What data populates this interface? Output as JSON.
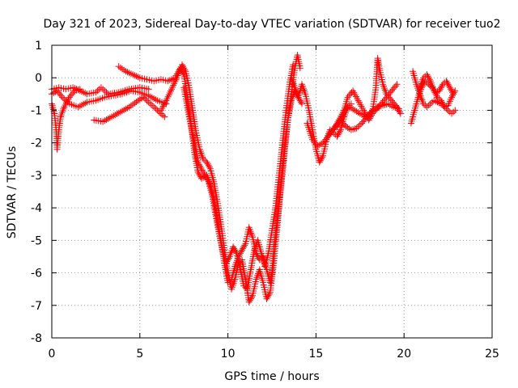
{
  "chart_data": {
    "type": "scatter",
    "title": "Day 321 of 2023, Sidereal Day-to-day VTEC variation (SDTVAR) for receiver tuo2",
    "xlabel": "GPS time / hours",
    "ylabel": "SDTVAR / TECUs",
    "xlim": [
      0,
      25
    ],
    "ylim": [
      -8,
      1
    ],
    "xticks": [
      0,
      5,
      10,
      15,
      20,
      25
    ],
    "yticks": [
      1,
      0,
      -1,
      -2,
      -3,
      -4,
      -5,
      -6,
      -7,
      -8
    ],
    "grid": true,
    "marker": "plus",
    "series": [
      {
        "name": "tuo2",
        "color": "#ff0000",
        "tracks": [
          [
            [
              0.0,
              -0.8
            ],
            [
              0.15,
              -1.1
            ],
            [
              0.25,
              -1.6
            ],
            [
              0.3,
              -2.2
            ],
            [
              0.4,
              -1.6
            ],
            [
              0.5,
              -1.2
            ],
            [
              0.7,
              -0.9
            ],
            [
              1.0,
              -0.6
            ],
            [
              1.3,
              -0.4
            ],
            [
              1.6,
              -0.35
            ]
          ],
          [
            [
              0.0,
              -0.5
            ],
            [
              0.3,
              -0.4
            ],
            [
              0.6,
              -0.6
            ],
            [
              1.0,
              -0.8
            ],
            [
              1.5,
              -0.9
            ],
            [
              2.0,
              -0.75
            ],
            [
              2.5,
              -0.7
            ],
            [
              3.0,
              -0.6
            ],
            [
              3.5,
              -0.55
            ],
            [
              4.0,
              -0.5
            ],
            [
              4.5,
              -0.4
            ],
            [
              5.0,
              -0.45
            ],
            [
              5.5,
              -0.55
            ],
            [
              6.0,
              -0.7
            ],
            [
              6.5,
              -0.8
            ]
          ],
          [
            [
              0.0,
              -0.35
            ],
            [
              0.4,
              -0.3
            ],
            [
              0.8,
              -0.35
            ],
            [
              1.2,
              -0.3
            ],
            [
              1.6,
              -0.4
            ],
            [
              2.0,
              -0.5
            ],
            [
              2.5,
              -0.45
            ],
            [
              2.8,
              -0.3
            ],
            [
              3.2,
              -0.5
            ],
            [
              3.8,
              -0.45
            ],
            [
              4.4,
              -0.35
            ],
            [
              5.0,
              -0.3
            ],
            [
              5.5,
              -0.35
            ]
          ],
          [
            [
              2.4,
              -1.3
            ],
            [
              2.9,
              -1.35
            ],
            [
              3.4,
              -1.2
            ],
            [
              3.9,
              -1.05
            ],
            [
              4.4,
              -0.9
            ],
            [
              4.9,
              -0.7
            ],
            [
              5.2,
              -0.6
            ],
            [
              5.6,
              -0.8
            ],
            [
              6.0,
              -1.0
            ],
            [
              6.4,
              -1.2
            ]
          ],
          [
            [
              3.8,
              0.35
            ],
            [
              4.2,
              0.2
            ],
            [
              4.6,
              0.1
            ],
            [
              5.0,
              0.0
            ],
            [
              5.4,
              -0.05
            ],
            [
              5.8,
              -0.1
            ],
            [
              6.2,
              -0.05
            ],
            [
              6.6,
              -0.1
            ],
            [
              7.0,
              0.0
            ],
            [
              7.3,
              0.3
            ],
            [
              7.5,
              0.1
            ],
            [
              7.7,
              -0.6
            ],
            [
              7.9,
              -1.4
            ],
            [
              8.1,
              -2.3
            ],
            [
              8.3,
              -2.9
            ],
            [
              8.5,
              -3.1
            ],
            [
              8.8,
              -3.0
            ],
            [
              9.0,
              -3.3
            ],
            [
              9.2,
              -3.7
            ],
            [
              9.4,
              -4.3
            ],
            [
              9.6,
              -5.0
            ],
            [
              9.8,
              -5.7
            ],
            [
              10.0,
              -6.3
            ],
            [
              10.2,
              -6.2
            ],
            [
              10.4,
              -5.8
            ],
            [
              10.6,
              -5.5
            ],
            [
              10.8,
              -5.3
            ],
            [
              11.0,
              -5.1
            ],
            [
              11.2,
              -4.6
            ],
            [
              11.4,
              -4.9
            ],
            [
              11.6,
              -5.4
            ],
            [
              11.8,
              -5.6
            ],
            [
              12.0,
              -5.5
            ],
            [
              12.2,
              -5.9
            ],
            [
              12.4,
              -6.3
            ],
            [
              12.5,
              -6.0
            ],
            [
              12.6,
              -5.2
            ],
            [
              12.8,
              -4.4
            ],
            [
              13.0,
              -3.4
            ],
            [
              13.2,
              -2.4
            ],
            [
              13.4,
              -1.3
            ],
            [
              13.6,
              -0.5
            ],
            [
              13.8,
              0.3
            ],
            [
              13.95,
              0.7
            ],
            [
              14.1,
              0.3
            ]
          ],
          [
            [
              6.2,
              -1.0
            ],
            [
              6.5,
              -0.7
            ],
            [
              6.8,
              -0.35
            ],
            [
              7.1,
              0.0
            ],
            [
              7.4,
              0.4
            ],
            [
              7.6,
              0.2
            ],
            [
              7.8,
              -0.3
            ],
            [
              8.0,
              -1.0
            ],
            [
              8.2,
              -1.7
            ],
            [
              8.4,
              -2.2
            ],
            [
              8.6,
              -2.5
            ],
            [
              8.8,
              -2.6
            ],
            [
              9.0,
              -2.8
            ],
            [
              9.2,
              -3.2
            ],
            [
              9.4,
              -3.8
            ],
            [
              9.6,
              -4.5
            ],
            [
              9.8,
              -5.3
            ],
            [
              10.0,
              -6.0
            ],
            [
              10.2,
              -6.5
            ],
            [
              10.4,
              -6.2
            ],
            [
              10.6,
              -5.7
            ],
            [
              10.8,
              -5.6
            ],
            [
              11.0,
              -6.2
            ],
            [
              11.2,
              -6.9
            ],
            [
              11.4,
              -6.7
            ],
            [
              11.6,
              -6.2
            ],
            [
              11.8,
              -5.9
            ],
            [
              12.0,
              -6.3
            ],
            [
              12.2,
              -6.8
            ],
            [
              12.4,
              -6.6
            ],
            [
              12.6,
              -5.7
            ],
            [
              12.8,
              -4.6
            ],
            [
              13.0,
              -3.3
            ],
            [
              13.2,
              -2.2
            ],
            [
              13.4,
              -1.3
            ],
            [
              13.6,
              -0.7
            ],
            [
              13.8,
              -0.4
            ],
            [
              14.0,
              -0.6
            ],
            [
              14.2,
              -0.8
            ]
          ],
          [
            [
              7.5,
              -0.3
            ],
            [
              7.8,
              -1.2
            ],
            [
              8.1,
              -2.0
            ],
            [
              8.3,
              -2.6
            ],
            [
              8.6,
              -2.9
            ],
            [
              8.9,
              -3.2
            ],
            [
              9.1,
              -3.6
            ],
            [
              9.3,
              -4.2
            ],
            [
              9.5,
              -4.8
            ],
            [
              9.7,
              -5.3
            ],
            [
              9.9,
              -5.7
            ],
            [
              10.1,
              -5.5
            ],
            [
              10.3,
              -5.2
            ],
            [
              10.5,
              -5.4
            ],
            [
              10.7,
              -5.9
            ],
            [
              10.9,
              -6.4
            ],
            [
              11.1,
              -6.5
            ],
            [
              11.3,
              -5.9
            ],
            [
              11.5,
              -5.3
            ],
            [
              11.7,
              -5.0
            ],
            [
              11.9,
              -5.4
            ],
            [
              12.1,
              -5.8
            ],
            [
              12.3,
              -5.4
            ],
            [
              12.5,
              -4.7
            ],
            [
              12.7,
              -4.0
            ],
            [
              12.9,
              -3.0
            ],
            [
              13.1,
              -2.0
            ],
            [
              13.3,
              -1.0
            ],
            [
              13.5,
              -0.2
            ],
            [
              13.7,
              0.4
            ]
          ],
          [
            [
              13.6,
              0.0
            ],
            [
              13.8,
              -0.3
            ],
            [
              14.0,
              -0.6
            ],
            [
              14.2,
              -0.2
            ],
            [
              14.4,
              -0.5
            ],
            [
              14.6,
              -1.0
            ],
            [
              14.8,
              -1.6
            ],
            [
              15.0,
              -2.2
            ],
            [
              15.2,
              -2.6
            ],
            [
              15.4,
              -2.4
            ],
            [
              15.6,
              -1.9
            ],
            [
              15.8,
              -1.6
            ],
            [
              16.0,
              -1.7
            ],
            [
              16.2,
              -1.8
            ],
            [
              16.4,
              -1.6
            ],
            [
              16.6,
              -1.2
            ],
            [
              16.8,
              -0.9
            ],
            [
              17.0,
              -0.8
            ]
          ],
          [
            [
              14.5,
              -1.4
            ],
            [
              14.8,
              -1.9
            ],
            [
              15.1,
              -2.1
            ],
            [
              15.4,
              -2.0
            ],
            [
              15.7,
              -1.8
            ],
            [
              16.0,
              -1.6
            ],
            [
              16.3,
              -1.3
            ],
            [
              16.6,
              -1.0
            ],
            [
              16.9,
              -0.9
            ],
            [
              17.2,
              -1.0
            ],
            [
              17.5,
              -1.1
            ],
            [
              17.8,
              -1.2
            ],
            [
              18.1,
              -1.1
            ],
            [
              18.4,
              -1.0
            ],
            [
              18.7,
              -0.8
            ],
            [
              19.0,
              -0.6
            ],
            [
              19.3,
              -0.4
            ],
            [
              19.6,
              -0.2
            ]
          ],
          [
            [
              15.8,
              -1.7
            ],
            [
              16.1,
              -1.5
            ],
            [
              16.4,
              -1.3
            ],
            [
              16.7,
              -1.5
            ],
            [
              17.0,
              -1.6
            ],
            [
              17.3,
              -1.55
            ],
            [
              17.6,
              -1.4
            ],
            [
              17.9,
              -1.2
            ],
            [
              18.2,
              -1.0
            ],
            [
              18.5,
              -0.9
            ],
            [
              18.8,
              -0.85
            ],
            [
              19.1,
              -0.8
            ],
            [
              19.4,
              -0.9
            ],
            [
              19.7,
              -0.95
            ]
          ],
          [
            [
              16.2,
              -1.5
            ],
            [
              16.5,
              -1.2
            ],
            [
              16.8,
              -0.6
            ],
            [
              17.1,
              -0.4
            ],
            [
              17.4,
              -0.7
            ],
            [
              17.7,
              -1.0
            ],
            [
              18.0,
              -1.3
            ],
            [
              18.2,
              -1.1
            ],
            [
              18.4,
              -0.3
            ],
            [
              18.5,
              0.6
            ],
            [
              18.6,
              0.3
            ],
            [
              18.8,
              -0.2
            ],
            [
              19.0,
              -0.5
            ],
            [
              19.3,
              -0.7
            ],
            [
              19.6,
              -0.9
            ],
            [
              19.8,
              -1.1
            ]
          ],
          [
            [
              20.4,
              -1.4
            ],
            [
              20.6,
              -1.0
            ],
            [
              20.8,
              -0.6
            ],
            [
              21.0,
              -0.3
            ],
            [
              21.2,
              -0.1
            ],
            [
              21.4,
              -0.2
            ],
            [
              21.6,
              -0.3
            ],
            [
              21.8,
              -0.45
            ],
            [
              22.0,
              -0.4
            ],
            [
              22.2,
              -0.2
            ],
            [
              22.4,
              -0.1
            ],
            [
              22.6,
              -0.3
            ],
            [
              22.8,
              -0.5
            ]
          ],
          [
            [
              20.5,
              0.2
            ],
            [
              20.7,
              -0.2
            ],
            [
              20.9,
              -0.5
            ],
            [
              21.1,
              -0.8
            ],
            [
              21.3,
              -0.9
            ],
            [
              21.5,
              -0.8
            ],
            [
              21.7,
              -0.7
            ],
            [
              21.9,
              -0.75
            ],
            [
              22.1,
              -0.8
            ],
            [
              22.3,
              -0.9
            ],
            [
              22.5,
              -0.85
            ],
            [
              22.7,
              -0.6
            ],
            [
              22.9,
              -0.4
            ]
          ],
          [
            [
              20.9,
              -0.3
            ],
            [
              21.1,
              0.0
            ],
            [
              21.3,
              0.1
            ],
            [
              21.5,
              -0.1
            ],
            [
              21.7,
              -0.4
            ],
            [
              21.9,
              -0.6
            ],
            [
              22.1,
              -0.7
            ],
            [
              22.3,
              -0.9
            ],
            [
              22.5,
              -1.0
            ],
            [
              22.7,
              -1.1
            ],
            [
              22.9,
              -1.0
            ]
          ]
        ]
      }
    ]
  }
}
